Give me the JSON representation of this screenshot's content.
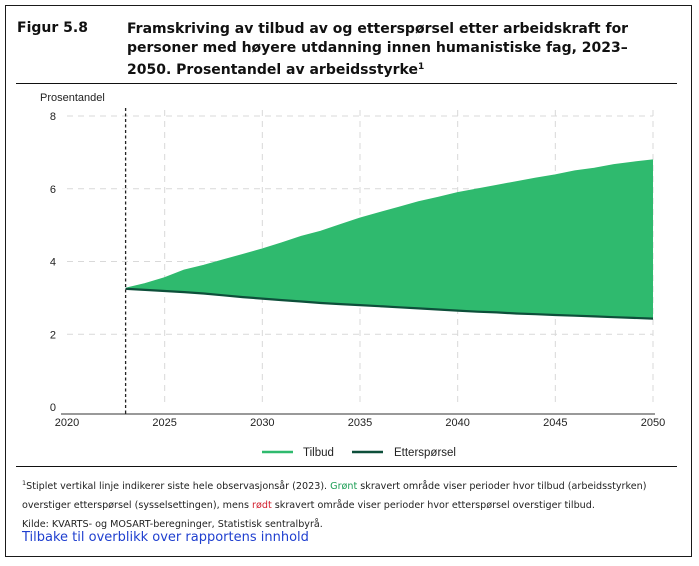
{
  "figure": {
    "label": "Figur 5.8",
    "title": "Framskriving av tilbud av og etterspørsel etter arbeidskraft for personer med høyere utdanning innen humanistiske fag, 2023–2050. Prosentandel av arbeidsstyrke",
    "title_footnote_mark": "1"
  },
  "notes": {
    "line1_mark": "1",
    "line1_a": "Stiplet vertikal linje indikerer siste hele observasjonsår (2023). ",
    "line1_green_word": "Grønt",
    "line1_b": " skravert område viser perioder hvor tilbud (arbeidsstyrken) overstiger etterspørsel (sysselsettingen), mens ",
    "line1_red_word": "rødt",
    "line1_c": " skravert område viser perioder hvor etterspørsel overstiger tilbud.",
    "source": "Kilde: KVARTS- og MOSART-beregninger, Statistisk sentralbyrå."
  },
  "backlink": "Tilbake til overblikk over rapportens innhold",
  "colors": {
    "tilbud": "#2fba6e",
    "ettersporsel": "#0d4f3a",
    "surplus_fill": "#2fba6e",
    "grid": "#d9d9d9",
    "axis": "#333333"
  },
  "chart_data": {
    "type": "area",
    "ylabel": "Prosentandel",
    "xlim": [
      2020,
      2050
    ],
    "ylim": [
      0,
      8
    ],
    "x_ticks": [
      2020,
      2025,
      2030,
      2035,
      2040,
      2045,
      2050
    ],
    "y_ticks": [
      0,
      2,
      4,
      6,
      8
    ],
    "grid": true,
    "legend_position": "bottom",
    "last_observed_year": 2023,
    "x": [
      2023,
      2024,
      2025,
      2026,
      2027,
      2028,
      2029,
      2030,
      2031,
      2032,
      2033,
      2034,
      2035,
      2036,
      2037,
      2038,
      2039,
      2040,
      2041,
      2042,
      2043,
      2044,
      2045,
      2046,
      2047,
      2048,
      2049,
      2050
    ],
    "series": [
      {
        "name": "Tilbud",
        "values": [
          3.25,
          3.38,
          3.54,
          3.75,
          3.88,
          4.03,
          4.18,
          4.33,
          4.5,
          4.68,
          4.82,
          5.0,
          5.18,
          5.33,
          5.48,
          5.63,
          5.75,
          5.88,
          5.98,
          6.08,
          6.18,
          6.28,
          6.37,
          6.48,
          6.55,
          6.65,
          6.72,
          6.78
        ]
      },
      {
        "name": "Etterspørsel",
        "values": [
          3.25,
          3.22,
          3.19,
          3.16,
          3.12,
          3.07,
          3.02,
          2.98,
          2.94,
          2.9,
          2.86,
          2.83,
          2.8,
          2.77,
          2.74,
          2.71,
          2.68,
          2.65,
          2.62,
          2.6,
          2.57,
          2.55,
          2.53,
          2.51,
          2.49,
          2.47,
          2.45,
          2.43
        ]
      }
    ]
  }
}
